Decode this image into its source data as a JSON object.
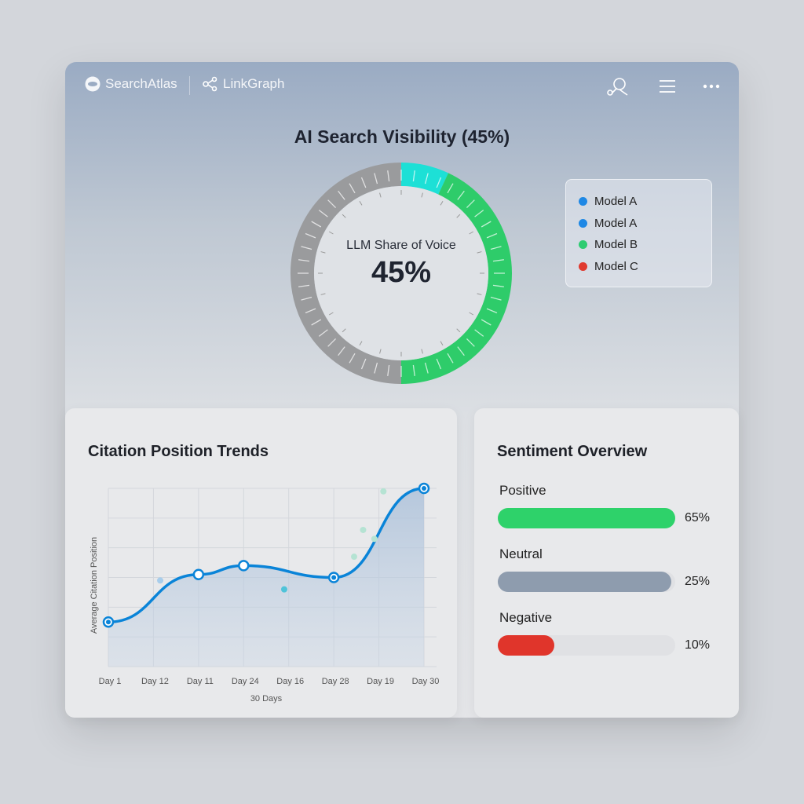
{
  "header": {
    "brand1": "SearchAtlas",
    "brand2": "LinkGraph",
    "icons": [
      "search-atlas-logo-icon",
      "share-nodes-icon",
      "search-person-icon",
      "menu-icon",
      "more-icon"
    ]
  },
  "visibility": {
    "title": "AI Search Visibility (45%)",
    "center_label": "LLM Share of Voice",
    "center_value": "45%",
    "percent": 45,
    "colors": {
      "cyan": "#1de0d6",
      "green": "#2ecc6a",
      "gray": "#9a9b9d"
    }
  },
  "legend": [
    {
      "label": "Model A",
      "color": "#1e88e5"
    },
    {
      "label": "Model A",
      "color": "#1e88e5"
    },
    {
      "label": "Model B",
      "color": "#2ecc71"
    },
    {
      "label": "Model C",
      "color": "#e03a2f"
    }
  ],
  "chart_data": {
    "type": "line",
    "title": "Citation Position Trends",
    "xlabel": "30 Days",
    "ylabel": "Average Citation Position",
    "categories": [
      "Day 1",
      "Day 12",
      "Day 11",
      "Day 24",
      "Day 16",
      "Day 28",
      "Day 19",
      "Day 30"
    ],
    "series": [
      {
        "points": [
          [
            "Day 1",
            1.5
          ],
          [
            "Day 11",
            3.1
          ],
          [
            "Day 24",
            3.4
          ],
          [
            "Day 28",
            3.0
          ],
          [
            "Day 30",
            6.0
          ]
        ],
        "color": "#0a84d8"
      }
    ],
    "scatter": [
      [
        1.15,
        2.9,
        "#a8cdeb"
      ],
      [
        3.9,
        2.6,
        "#4fc3d9"
      ],
      [
        5.45,
        3.7,
        "#b5e3d3"
      ],
      [
        5.65,
        4.6,
        "#b5e3d3"
      ],
      [
        5.9,
        4.3,
        "#b5e3d3"
      ],
      [
        6.1,
        5.9,
        "#b5e3d3"
      ]
    ],
    "ylim": [
      0,
      6
    ],
    "grid": true
  },
  "sentiment": {
    "title": "Sentiment Overview",
    "items": [
      {
        "label": "Positive",
        "value": 65,
        "text": "65%",
        "color": "#2ed26a",
        "fill": 1.0
      },
      {
        "label": "Neutral",
        "value": 25,
        "text": "25%",
        "color": "#8e9cae",
        "fill": 0.98
      },
      {
        "label": "Negative",
        "value": 10,
        "text": "10%",
        "color": "#e0352b",
        "fill": 0.32
      }
    ]
  }
}
